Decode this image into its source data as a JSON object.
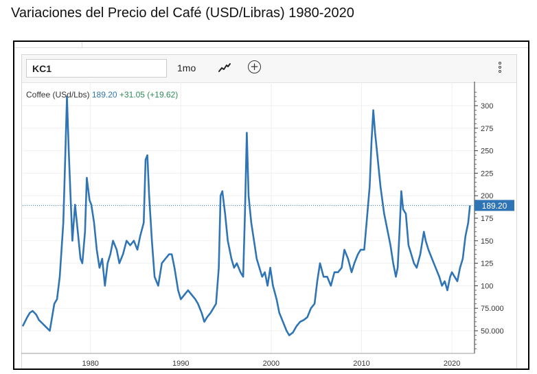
{
  "page_title": "Variaciones del Precio del Café (USD/Libras) 1980-2020",
  "toolbar": {
    "symbol": "KC1",
    "interval": "1mo",
    "add_label": "+"
  },
  "legend": {
    "name": "Coffee (USd/Lbs)",
    "price": "189.20",
    "change": "+31.05 (+19.62)"
  },
  "colors": {
    "line": "#2f74b5",
    "price_tag_bg": "#2f74b5",
    "change": "#2e8b57"
  },
  "chart_data": {
    "type": "line",
    "title": "",
    "xlabel": "",
    "ylabel": "",
    "last_value_label": "189.20",
    "xlim": [
      1972.5,
      2022.5
    ],
    "ylim": [
      20,
      320
    ],
    "y_ticks": [
      {
        "value": 50,
        "label": "50.000"
      },
      {
        "value": 75,
        "label": "75.000"
      },
      {
        "value": 100,
        "label": "100"
      },
      {
        "value": 125,
        "label": "125"
      },
      {
        "value": 150,
        "label": "150"
      },
      {
        "value": 175,
        "label": "175"
      },
      {
        "value": 200,
        "label": "200"
      },
      {
        "value": 225,
        "label": "225"
      },
      {
        "value": 250,
        "label": "250"
      },
      {
        "value": 275,
        "label": "275"
      },
      {
        "value": 300,
        "label": "300"
      }
    ],
    "x_ticks": [
      {
        "value": 1980,
        "label": "1980"
      },
      {
        "value": 1990,
        "label": "1990"
      },
      {
        "value": 2000,
        "label": "2000"
      },
      {
        "value": 2010,
        "label": "2010"
      },
      {
        "value": 2020,
        "label": "2020"
      }
    ],
    "grid": true,
    "series": [
      {
        "values": [
          [
            1972.5,
            55
          ],
          [
            1973.0,
            65
          ],
          [
            1973.3,
            70
          ],
          [
            1973.6,
            72
          ],
          [
            1974.0,
            68
          ],
          [
            1974.3,
            62
          ],
          [
            1974.7,
            58
          ],
          [
            1975.0,
            55
          ],
          [
            1975.5,
            50
          ],
          [
            1976.0,
            80
          ],
          [
            1976.3,
            85
          ],
          [
            1976.6,
            110
          ],
          [
            1977.0,
            170
          ],
          [
            1977.2,
            240
          ],
          [
            1977.4,
            310
          ],
          [
            1977.6,
            250
          ],
          [
            1977.8,
            200
          ],
          [
            1978.0,
            150
          ],
          [
            1978.3,
            190
          ],
          [
            1978.6,
            160
          ],
          [
            1978.9,
            130
          ],
          [
            1979.1,
            125
          ],
          [
            1979.4,
            160
          ],
          [
            1979.6,
            220
          ],
          [
            1979.9,
            195
          ],
          [
            1980.1,
            190
          ],
          [
            1980.4,
            170
          ],
          [
            1980.7,
            140
          ],
          [
            1981.0,
            120
          ],
          [
            1981.3,
            130
          ],
          [
            1981.6,
            100
          ],
          [
            1981.9,
            125
          ],
          [
            1982.2,
            135
          ],
          [
            1982.5,
            150
          ],
          [
            1982.9,
            140
          ],
          [
            1983.2,
            125
          ],
          [
            1983.6,
            135
          ],
          [
            1984.0,
            150
          ],
          [
            1984.4,
            145
          ],
          [
            1984.8,
            150
          ],
          [
            1985.2,
            140
          ],
          [
            1985.5,
            155
          ],
          [
            1985.9,
            170
          ],
          [
            1986.1,
            240
          ],
          [
            1986.3,
            245
          ],
          [
            1986.5,
            200
          ],
          [
            1986.8,
            150
          ],
          [
            1987.1,
            110
          ],
          [
            1987.5,
            100
          ],
          [
            1987.9,
            125
          ],
          [
            1988.3,
            130
          ],
          [
            1988.7,
            135
          ],
          [
            1989.0,
            135
          ],
          [
            1989.3,
            120
          ],
          [
            1989.7,
            95
          ],
          [
            1990.0,
            85
          ],
          [
            1990.4,
            90
          ],
          [
            1990.8,
            95
          ],
          [
            1991.2,
            90
          ],
          [
            1991.6,
            85
          ],
          [
            1991.9,
            80
          ],
          [
            1992.3,
            70
          ],
          [
            1992.6,
            60
          ],
          [
            1992.9,
            65
          ],
          [
            1993.3,
            70
          ],
          [
            1993.6,
            75
          ],
          [
            1993.9,
            80
          ],
          [
            1994.2,
            120
          ],
          [
            1994.4,
            200
          ],
          [
            1994.6,
            205
          ],
          [
            1994.9,
            180
          ],
          [
            1995.2,
            150
          ],
          [
            1995.6,
            130
          ],
          [
            1995.9,
            120
          ],
          [
            1996.2,
            125
          ],
          [
            1996.6,
            115
          ],
          [
            1996.9,
            110
          ],
          [
            1997.1,
            180
          ],
          [
            1997.3,
            270
          ],
          [
            1997.5,
            200
          ],
          [
            1997.8,
            170
          ],
          [
            1998.1,
            150
          ],
          [
            1998.4,
            130
          ],
          [
            1998.7,
            120
          ],
          [
            1999.0,
            110
          ],
          [
            1999.3,
            115
          ],
          [
            1999.6,
            100
          ],
          [
            1999.9,
            120
          ],
          [
            2000.2,
            100
          ],
          [
            2000.6,
            85
          ],
          [
            2000.9,
            70
          ],
          [
            2001.3,
            60
          ],
          [
            2001.7,
            50
          ],
          [
            2002.0,
            45
          ],
          [
            2002.4,
            48
          ],
          [
            2002.8,
            55
          ],
          [
            2003.2,
            60
          ],
          [
            2003.6,
            62
          ],
          [
            2004.0,
            65
          ],
          [
            2004.4,
            75
          ],
          [
            2004.8,
            80
          ],
          [
            2005.1,
            105
          ],
          [
            2005.4,
            125
          ],
          [
            2005.8,
            110
          ],
          [
            2006.2,
            110
          ],
          [
            2006.6,
            100
          ],
          [
            2007.0,
            115
          ],
          [
            2007.4,
            115
          ],
          [
            2007.8,
            120
          ],
          [
            2008.1,
            140
          ],
          [
            2008.5,
            130
          ],
          [
            2008.9,
            115
          ],
          [
            2009.2,
            125
          ],
          [
            2009.6,
            135
          ],
          [
            2009.9,
            140
          ],
          [
            2010.3,
            140
          ],
          [
            2010.6,
            175
          ],
          [
            2010.9,
            210
          ],
          [
            2011.1,
            260
          ],
          [
            2011.3,
            295
          ],
          [
            2011.5,
            270
          ],
          [
            2011.8,
            240
          ],
          [
            2012.1,
            210
          ],
          [
            2012.5,
            180
          ],
          [
            2012.9,
            160
          ],
          [
            2013.2,
            145
          ],
          [
            2013.5,
            125
          ],
          [
            2013.8,
            110
          ],
          [
            2014.0,
            120
          ],
          [
            2014.2,
            160
          ],
          [
            2014.4,
            205
          ],
          [
            2014.6,
            185
          ],
          [
            2014.9,
            180
          ],
          [
            2015.2,
            145
          ],
          [
            2015.5,
            135
          ],
          [
            2015.8,
            125
          ],
          [
            2016.1,
            120
          ],
          [
            2016.5,
            135
          ],
          [
            2016.9,
            160
          ],
          [
            2017.1,
            150
          ],
          [
            2017.4,
            140
          ],
          [
            2017.8,
            130
          ],
          [
            2018.2,
            120
          ],
          [
            2018.6,
            110
          ],
          [
            2018.9,
            100
          ],
          [
            2019.2,
            105
          ],
          [
            2019.5,
            95
          ],
          [
            2019.8,
            110
          ],
          [
            2020.0,
            115
          ],
          [
            2020.3,
            110
          ],
          [
            2020.6,
            105
          ],
          [
            2020.9,
            120
          ],
          [
            2021.2,
            130
          ],
          [
            2021.5,
            155
          ],
          [
            2021.8,
            170
          ],
          [
            2022.0,
            189.2
          ]
        ]
      }
    ]
  }
}
